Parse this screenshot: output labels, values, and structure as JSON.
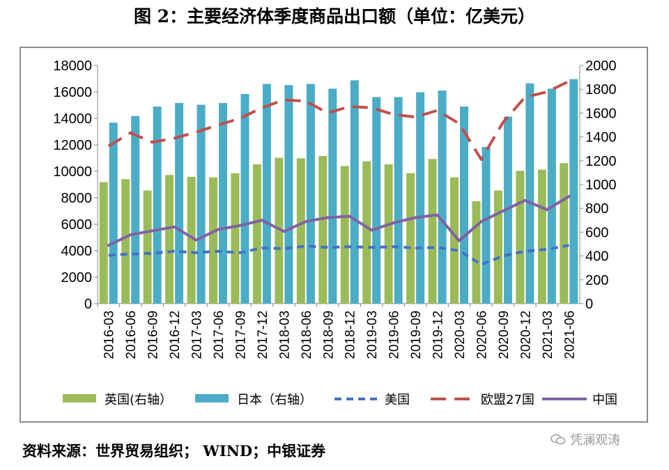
{
  "title": "图 2：主要经济体季度商品出口额（单位：亿美元）",
  "source": "资料来源：世界贸易组织；  WIND；中银证券",
  "watermark": "凭澜观涛",
  "chart_data": {
    "type": "bar+line",
    "categories": [
      "2016-03",
      "2016-06",
      "2016-09",
      "2016-12",
      "2017-03",
      "2017-06",
      "2017-09",
      "2017-12",
      "2018-03",
      "2018-06",
      "2018-09",
      "2018-12",
      "2019-03",
      "2019-06",
      "2019-09",
      "2019-12",
      "2020-03",
      "2020-06",
      "2020-09",
      "2020-12",
      "2021-03",
      "2021-06"
    ],
    "left_axis": {
      "min": 0,
      "max": 18000,
      "step": 2000,
      "ticks": [
        "0",
        "2000",
        "4000",
        "6000",
        "8000",
        "10000",
        "12000",
        "14000",
        "16000",
        "18000"
      ]
    },
    "right_axis": {
      "min": 0,
      "max": 2000,
      "step": 200,
      "ticks": [
        "0",
        "200",
        "400",
        "600",
        "800",
        "1000",
        "1200",
        "1400",
        "1600",
        "1800",
        "2000"
      ]
    },
    "series": [
      {
        "name": "英国(右轴）",
        "kind": "bar",
        "axis": "right",
        "color": "#9bbb59",
        "values": [
          1020,
          1045,
          950,
          1080,
          1065,
          1060,
          1095,
          1170,
          1225,
          1220,
          1240,
          1155,
          1195,
          1170,
          1095,
          1215,
          1060,
          860,
          950,
          1115,
          1125,
          1180
        ]
      },
      {
        "name": "日本（右轴）",
        "kind": "bar",
        "axis": "right",
        "color": "#4bacc6",
        "values": [
          1520,
          1575,
          1655,
          1685,
          1670,
          1685,
          1760,
          1845,
          1835,
          1845,
          1805,
          1875,
          1735,
          1735,
          1775,
          1790,
          1655,
          1315,
          1570,
          1850,
          1805,
          1885
        ]
      },
      {
        "name": "美国",
        "kind": "line",
        "dash": "short",
        "axis": "left",
        "color": "#4472c4",
        "values": [
          3650,
          3750,
          3800,
          3950,
          3850,
          3950,
          3850,
          4200,
          4150,
          4350,
          4250,
          4300,
          4250,
          4300,
          4200,
          4250,
          4000,
          2950,
          3600,
          3950,
          4100,
          4400
        ]
      },
      {
        "name": "欧盟27国",
        "kind": "line",
        "dash": "long",
        "axis": "left",
        "color": "#c0504d",
        "values": [
          11900,
          12900,
          12200,
          12500,
          12950,
          13500,
          14000,
          14800,
          15400,
          15300,
          14400,
          14900,
          14800,
          14300,
          14100,
          14600,
          13600,
          10900,
          13700,
          15600,
          16000,
          16800
        ]
      },
      {
        "name": "中国",
        "kind": "line",
        "dash": "solid",
        "axis": "left",
        "color": "#7f63a1",
        "values": [
          4400,
          5200,
          5500,
          5800,
          4800,
          5600,
          5900,
          6300,
          5450,
          6200,
          6500,
          6600,
          5550,
          6100,
          6500,
          6700,
          4750,
          6200,
          7000,
          7800,
          7100,
          8100
        ]
      }
    ],
    "legend_position": "bottom",
    "grid": false
  }
}
